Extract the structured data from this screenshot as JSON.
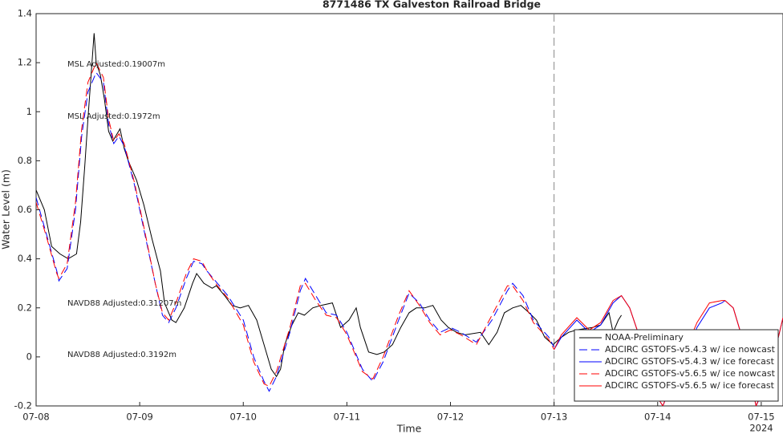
{
  "chart_data": {
    "type": "line",
    "title": "8771486 TX Galveston Railroad Bridge",
    "x_label": "Time",
    "y_label": "Water Level (m)",
    "x_year_label": "2024",
    "xlim": [
      0,
      7.21
    ],
    "ylim": [
      -0.2,
      1.4
    ],
    "xticks": [
      {
        "value": 0,
        "label": "07-08"
      },
      {
        "value": 1,
        "label": "07-09"
      },
      {
        "value": 2,
        "label": "07-10"
      },
      {
        "value": 3,
        "label": "07-11"
      },
      {
        "value": 4,
        "label": "07-12"
      },
      {
        "value": 5,
        "label": "07-13"
      },
      {
        "value": 6,
        "label": "07-14"
      },
      {
        "value": 7,
        "label": "07-15"
      }
    ],
    "yticks": [
      -0.2,
      0,
      0.2,
      0.4,
      0.6,
      0.8,
      1,
      1.2,
      1.4
    ],
    "vline": 5,
    "legend": "lower right",
    "annotations": [
      {
        "text": "MSL Adjusted:0.19007m",
        "color": "#0000ff"
      },
      {
        "text": "MSL Adjusted:0.1972m",
        "color": "#ff0000"
      },
      {
        "text": "NAVD88 Adjusted:0.31207m",
        "color": "#0000ff"
      },
      {
        "text": "NAVD88 Adjusted:0.3192m",
        "color": "#ff0000"
      }
    ],
    "series": [
      {
        "name": "NOAA-Preliminary",
        "color": "#000000",
        "dash": false,
        "x": [
          0,
          0.08,
          0.15,
          0.23,
          0.31,
          0.39,
          0.43,
          0.47,
          0.5,
          0.56,
          0.58,
          0.62,
          0.66,
          0.7,
          0.74,
          0.81,
          0.85,
          0.89,
          0.97,
          1.04,
          1.12,
          1.2,
          1.24,
          1.28,
          1.31,
          1.35,
          1.43,
          1.51,
          1.55,
          1.62,
          1.7,
          1.74,
          1.82,
          1.89,
          1.97,
          2.05,
          2.13,
          2.2,
          2.27,
          2.32,
          2.36,
          2.4,
          2.47,
          2.53,
          2.59,
          2.67,
          2.75,
          2.86,
          2.94,
          3.02,
          3.09,
          3.13,
          3.21,
          3.29,
          3.36,
          3.44,
          3.52,
          3.6,
          3.67,
          3.75,
          3.83,
          3.91,
          3.98,
          4.06,
          4.14,
          4.29,
          4.37,
          4.45,
          4.52,
          4.6,
          4.68,
          4.76,
          4.83,
          4.91,
          4.99,
          5.07,
          5.14,
          5.22,
          5.37,
          5.45,
          5.53,
          5.57,
          5.62,
          5.65
        ],
        "values": [
          0.68,
          0.6,
          0.45,
          0.42,
          0.4,
          0.42,
          0.55,
          0.78,
          0.97,
          1.32,
          1.2,
          1.15,
          1.05,
          0.92,
          0.88,
          0.93,
          0.85,
          0.8,
          0.72,
          0.62,
          0.48,
          0.35,
          0.22,
          0.18,
          0.15,
          0.14,
          0.2,
          0.3,
          0.34,
          0.3,
          0.28,
          0.29,
          0.25,
          0.21,
          0.2,
          0.21,
          0.15,
          0.05,
          -0.05,
          -0.08,
          -0.05,
          0.05,
          0.13,
          0.18,
          0.17,
          0.2,
          0.21,
          0.22,
          0.12,
          0.15,
          0.2,
          0.12,
          0.02,
          0.01,
          0.02,
          0.05,
          0.12,
          0.18,
          0.2,
          0.2,
          0.21,
          0.15,
          0.12,
          0.1,
          0.09,
          0.1,
          0.05,
          0.1,
          0.18,
          0.2,
          0.21,
          0.18,
          0.15,
          0.08,
          0.05,
          0.08,
          0.1,
          0.11,
          0.12,
          0.13,
          0.18,
          0.1,
          0.15,
          0.17
        ]
      },
      {
        "name": "ADCIRC GSTOFS-v5.4.3 w/ ice nowcast",
        "color": "#0000ff",
        "dash": true,
        "x": [
          0,
          0.1,
          0.2,
          0.22,
          0.3,
          0.38,
          0.44,
          0.5,
          0.58,
          0.65,
          0.7,
          0.75,
          0.8,
          0.85,
          0.95,
          1.05,
          1.15,
          1.22,
          1.28,
          1.35,
          1.45,
          1.52,
          1.6,
          1.65,
          1.75,
          1.85,
          2.0,
          2.1,
          2.2,
          2.25,
          2.32,
          2.45,
          2.55,
          2.6,
          2.7,
          2.8,
          2.9,
          3.0,
          3.15,
          3.25,
          3.35,
          3.5,
          3.6,
          3.7,
          3.8,
          3.9,
          4.0,
          4.1,
          4.25,
          4.4,
          4.55,
          4.6,
          4.7,
          4.8,
          4.95,
          5.0
        ],
        "values": [
          0.65,
          0.5,
          0.35,
          0.31,
          0.36,
          0.6,
          0.9,
          1.08,
          1.16,
          1.12,
          0.95,
          0.87,
          0.9,
          0.86,
          0.7,
          0.5,
          0.3,
          0.17,
          0.14,
          0.2,
          0.32,
          0.39,
          0.38,
          0.35,
          0.3,
          0.25,
          0.15,
          0.0,
          -0.1,
          -0.14,
          -0.08,
          0.1,
          0.27,
          0.32,
          0.25,
          0.18,
          0.17,
          0.1,
          -0.05,
          -0.1,
          -0.02,
          0.15,
          0.26,
          0.22,
          0.15,
          0.1,
          0.12,
          0.1,
          0.06,
          0.15,
          0.27,
          0.3,
          0.25,
          0.15,
          0.08,
          0.04
        ]
      },
      {
        "name": "ADCIRC GSTOFS-v5.4.3 w/ ice forecast",
        "color": "#0000ff",
        "dash": false,
        "x": [
          5.0,
          5.07,
          5.22,
          5.34,
          5.45,
          5.57,
          5.65,
          5.73,
          5.81,
          5.9,
          6.05,
          6.2,
          6.38,
          6.5,
          6.62,
          6.65,
          6.73,
          6.8,
          6.86,
          6.95,
          7.04,
          7.12,
          7.21
        ],
        "values": [
          0.03,
          0.08,
          0.15,
          0.1,
          0.13,
          0.22,
          0.25,
          0.2,
          0.1,
          -0.1,
          -0.2,
          -0.05,
          0.12,
          0.2,
          0.22,
          0.23,
          0.2,
          0.1,
          -0.02,
          -0.2,
          -0.12,
          0.0,
          0.16
        ]
      },
      {
        "name": "ADCIRC GSTOFS-v5.6.5 w/ ice nowcast",
        "color": "#ff0000",
        "dash": true,
        "x": [
          0,
          0.1,
          0.2,
          0.22,
          0.3,
          0.38,
          0.44,
          0.5,
          0.58,
          0.65,
          0.7,
          0.75,
          0.8,
          0.85,
          0.95,
          1.05,
          1.15,
          1.22,
          1.28,
          1.35,
          1.45,
          1.52,
          1.6,
          1.65,
          1.75,
          1.85,
          2.0,
          2.1,
          2.2,
          2.25,
          2.32,
          2.45,
          2.55,
          2.6,
          2.7,
          2.8,
          2.9,
          3.0,
          3.15,
          3.25,
          3.35,
          3.5,
          3.6,
          3.7,
          3.8,
          3.9,
          4.0,
          4.1,
          4.25,
          4.4,
          4.55,
          4.6,
          4.7,
          4.8,
          4.95,
          5.0
        ],
        "values": [
          0.63,
          0.49,
          0.34,
          0.32,
          0.38,
          0.63,
          0.93,
          1.12,
          1.2,
          1.14,
          0.97,
          0.88,
          0.91,
          0.87,
          0.71,
          0.51,
          0.3,
          0.18,
          0.15,
          0.22,
          0.34,
          0.4,
          0.39,
          0.35,
          0.29,
          0.24,
          0.13,
          -0.02,
          -0.11,
          -0.12,
          -0.06,
          0.12,
          0.29,
          0.3,
          0.23,
          0.17,
          0.16,
          0.09,
          -0.06,
          -0.09,
          0.0,
          0.17,
          0.27,
          0.21,
          0.14,
          0.09,
          0.11,
          0.09,
          0.05,
          0.17,
          0.29,
          0.29,
          0.23,
          0.14,
          0.07,
          0.03
        ]
      },
      {
        "name": "ADCIRC GSTOFS-v5.6.5 w/ ice forecast",
        "color": "#ff0000",
        "dash": false,
        "x": [
          5.0,
          5.07,
          5.22,
          5.34,
          5.45,
          5.57,
          5.65,
          5.73,
          5.81,
          5.9,
          6.05,
          6.2,
          6.38,
          6.5,
          6.62,
          6.65,
          6.73,
          6.8,
          6.86,
          6.95,
          7.04,
          7.12,
          7.21
        ],
        "values": [
          0.03,
          0.09,
          0.16,
          0.11,
          0.14,
          0.23,
          0.25,
          0.2,
          0.1,
          -0.1,
          -0.2,
          -0.04,
          0.14,
          0.22,
          0.23,
          0.23,
          0.2,
          0.1,
          -0.02,
          -0.2,
          -0.11,
          0.0,
          0.16
        ]
      }
    ]
  }
}
